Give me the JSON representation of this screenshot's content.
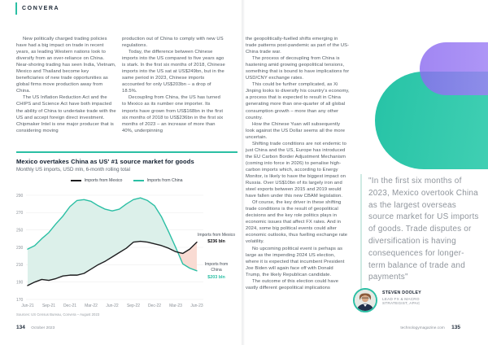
{
  "header": {
    "brand": "CONVERA"
  },
  "article": {
    "columns": [
      {
        "paras": [
          {
            "indent": true,
            "text": "New politically charged trading policies have had a big impact on trade in recent years, as leading Western nations look to diversify from an over-reliance on China. Near-shoring trading has seen India, Vietnam, Mexico and Thailand become key beneficiaries of new trade opportunities as global firms move production away from China."
          },
          {
            "indent": true,
            "text": "The US Inflation Reduction Act and the CHIPS and Science Act have both impacted the ability of China to undertake trade with the US and accept foreign direct investment. Chipmaker Intel is one major producer that is considering moving"
          }
        ]
      },
      {
        "paras": [
          {
            "indent": false,
            "text": "production out of China to comply with new US regulations."
          },
          {
            "indent": true,
            "text": "Today, the difference between Chinese imports into the US compared to five years ago is stark. In the first six months of 2018, Chinese imports into the US sat at US$249bn, but in the same period in 2023, Chinese imports accounted for only US$203bn – a drop of 18.5%."
          },
          {
            "indent": true,
            "text": "Decoupling from China, the US has turned to Mexico as its number one importer. Its imports have grown from US$168bn in the first six months of 2018 to US$236bn in the first six months of 2023 – an increase of more than 40%, underpinning"
          }
        ]
      },
      {
        "paras": [
          {
            "indent": false,
            "text": "the geopolitically-fuelled shifts emerging in trade patterns post-pandemic as part of the US-China trade war."
          },
          {
            "indent": true,
            "text": "The process of decoupling from China is hastening amid growing geopolitical tensions, something that is bound to have implications for USD/CNY exchange rates."
          },
          {
            "indent": true,
            "text": "This could be further complicated, as Xi Jinping looks to diversify his country's economy, a process that is expected to result in China generating more than one-quarter of all global consumption growth – more than any other country."
          },
          {
            "indent": true,
            "text": "How the Chinese Yuan will subsequently look against the US Dollar seems all the more uncertain."
          },
          {
            "indent": true,
            "text": "Shifting trade conditions are not endemic to just China and the US, Europe has introduced the EU Carbon Border Adjustment Mechanism (coming into force in 2026) to penalise high-carbon imports which, according to Energy Monitor, is likely to have the biggest impact on Russia. Over US$10bn of its largely iron and steel exports between 2015 and 2019 would have fallen under this new CBAM legislation."
          },
          {
            "indent": true,
            "text": "Of course, the key driver in these shifting trade conditions is the result of geopolitical decisions and the key role politics plays in economic issues that affect FX rates. And in 2024, some big political events could alter economic outlooks, thus fuelling exchange rate volatility."
          },
          {
            "indent": true,
            "text": "No upcoming political event is perhaps as large as the impending 2024 US election, where it is expected that incumbent President Joe Biden will again face off with Donald Trump, the likely Republican candidate."
          },
          {
            "indent": true,
            "text": "The outcome of this election could have vastly different geopolitical implications"
          }
        ]
      }
    ]
  },
  "chart_data": {
    "type": "area",
    "title": "Mexico overtakes China as US' #1 source market for goods",
    "subtitle": "Monthly US imports, USD mln, 6-month rolling total",
    "source": "Sources: US Census Bureau, Convera – August 2023",
    "legend_position": "top",
    "grid": true,
    "ylim": [
      170,
      290
    ],
    "yticks": [
      290,
      270,
      250,
      230,
      210,
      190,
      170
    ],
    "x_tick_labels": [
      "Jun-21",
      "Sep-21",
      "Dec-21",
      "Mar-22",
      "Jun-22",
      "Sep-22",
      "Dec-22",
      "Mar-23",
      "Jun-23"
    ],
    "months": [
      "Jun-21",
      "Jul-21",
      "Aug-21",
      "Sep-21",
      "Oct-21",
      "Nov-21",
      "Dec-21",
      "Jan-22",
      "Feb-22",
      "Mar-22",
      "Apr-22",
      "May-22",
      "Jun-22",
      "Jul-22",
      "Aug-22",
      "Sep-22",
      "Oct-22",
      "Nov-22",
      "Dec-22",
      "Jan-23",
      "Feb-23",
      "Mar-23",
      "Apr-23",
      "May-23",
      "Jun-23"
    ],
    "series": [
      {
        "name": "Imports from Mexico",
        "color": "#1d1d1f",
        "values": [
          186,
          190,
          193,
          192,
          194,
          197,
          198,
          198,
          200,
          205,
          210,
          214,
          219,
          224,
          229,
          236,
          237,
          236,
          234,
          232,
          229,
          225,
          223,
          228,
          236
        ]
      },
      {
        "name": "Imports from China",
        "color": "#2bbfa4",
        "values": [
          228,
          232,
          240,
          247,
          257,
          266,
          277,
          284,
          285,
          283,
          278,
          274,
          272,
          274,
          280,
          285,
          287,
          284,
          278,
          265,
          248,
          230,
          211,
          206,
          203
        ]
      }
    ],
    "annotations": [
      {
        "label": "Imports from Mexico",
        "value": "$236 bln",
        "value_color": "#101014"
      },
      {
        "label": "Imports from China",
        "value": "$203 bln",
        "value_color": "#2bbfa4"
      }
    ],
    "fills": {
      "china_above": "#dcf0ea",
      "mexico_above": "#f9dbd3"
    }
  },
  "quote": {
    "text": "\"In the first six months of 2023, Mexico overtook China as the largest overseas source market for US imports of goods. Trade disputes or diversification is having consequences for longer-term balance of trade and payments\"",
    "author": "STEVEN DOOLEY",
    "role": "LEAD FX & MACRO STRATEGIST, APAC"
  },
  "footer_left": {
    "page": "134",
    "date": "October 2023"
  },
  "footer_right": {
    "site": "technologymagazine.com",
    "page": "135"
  },
  "colors": {
    "accent_teal": "#2bbfa4",
    "accent_purple": "#a18bf0",
    "mint_fill": "#dcf0ea",
    "pink_fill": "#f9dbd3"
  }
}
